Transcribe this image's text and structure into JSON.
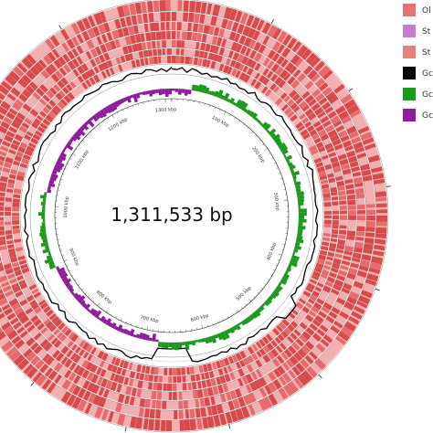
{
  "figure": {
    "genome_size_label": "1,311,533 bp"
  },
  "tick_labels": [
    "100 kbp",
    "200 kbp",
    "300 kbp",
    "400 kbp",
    "500 kbp",
    "600 kbp",
    "700 kbp",
    "800 kbp",
    "900 kbp",
    "1000 kbp",
    "1100 kbp",
    "1200 kbp",
    "1300 kbp"
  ],
  "genome_length_bp": 1311533,
  "legend": [
    {
      "label": "Ol",
      "color": "#e57373"
    },
    {
      "label": "St",
      "color": "#c77dce"
    },
    {
      "label": "St",
      "color": "#e88080"
    },
    {
      "label": "Gc",
      "color": "#000000"
    },
    {
      "label": "Gc",
      "color": "#1a9a1a"
    },
    {
      "label": "Gc",
      "color": "#8e1a9e"
    }
  ],
  "colors": {
    "blast_ring": "#d94a4a",
    "blast_ring_light": "#f2b0b0",
    "gc_content": "#000000",
    "gc_skew_positive": "#1a9a1a",
    "gc_skew_negative": "#8e1a9e"
  }
}
